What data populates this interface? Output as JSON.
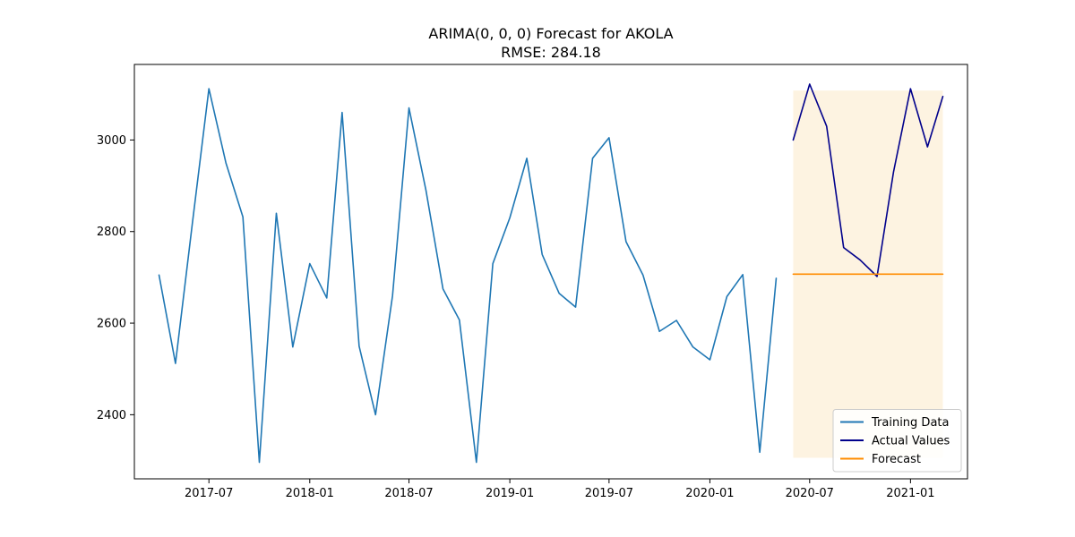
{
  "chart_data": {
    "type": "line",
    "title": "ARIMA(0, 0, 0) Forecast for AKOLA",
    "subtitle": "RMSE: 284.18",
    "xlabel": "",
    "ylabel": "",
    "x_range": [
      "2017-02-15",
      "2021-04-15"
    ],
    "ylim": [
      2260,
      3165
    ],
    "x_ticks": [
      "2017-07",
      "2018-01",
      "2018-07",
      "2019-01",
      "2019-07",
      "2020-01",
      "2020-07",
      "2021-01"
    ],
    "y_ticks": [
      2400,
      2600,
      2800,
      3000
    ],
    "grid": false,
    "legend_position": "lower-right",
    "series": [
      {
        "name": "Training Data",
        "color": "#1f77b4",
        "x": [
          "2017-04",
          "2017-05",
          "2017-06",
          "2017-07",
          "2017-08",
          "2017-09",
          "2017-10",
          "2017-11",
          "2017-12",
          "2018-01",
          "2018-02",
          "2018-03",
          "2018-04",
          "2018-05",
          "2018-06",
          "2018-07",
          "2018-08",
          "2018-09",
          "2018-10",
          "2018-11",
          "2018-12",
          "2019-01",
          "2019-02",
          "2019-03",
          "2019-04",
          "2019-05",
          "2019-06",
          "2019-07",
          "2019-08",
          "2019-09",
          "2019-10",
          "2019-11",
          "2019-12",
          "2020-01",
          "2020-02",
          "2020-03",
          "2020-04",
          "2020-05"
        ],
        "values": [
          2705,
          2512,
          2820,
          3112,
          2950,
          2832,
          2296,
          2840,
          2548,
          2730,
          2655,
          3060,
          2550,
          2400,
          2660,
          3070,
          2890,
          2675,
          2607,
          2296,
          2730,
          2830,
          2960,
          2750,
          2665,
          2635,
          2960,
          3005,
          2778,
          2705,
          2582,
          2606,
          2548,
          2520,
          2658,
          2706,
          2318,
          2698
        ]
      },
      {
        "name": "Actual Values",
        "color": "#00008b",
        "x": [
          "2020-06",
          "2020-07",
          "2020-08",
          "2020-09",
          "2020-10",
          "2020-11",
          "2020-12",
          "2021-01",
          "2021-02",
          "2021-03"
        ],
        "values": [
          3000,
          3122,
          3030,
          2765,
          2738,
          2702,
          2930,
          3112,
          2985,
          3095
        ]
      },
      {
        "name": "Forecast",
        "color": "#ff8c00",
        "x": [
          "2020-06",
          "2020-07",
          "2020-08",
          "2020-09",
          "2020-10",
          "2020-11",
          "2020-12",
          "2021-01",
          "2021-02",
          "2021-03"
        ],
        "values": [
          2707,
          2707,
          2707,
          2707,
          2707,
          2707,
          2707,
          2707,
          2707,
          2707
        ]
      }
    ],
    "confidence_band": {
      "color": "#fdf3e1",
      "x_start": "2020-06",
      "x_end": "2021-03",
      "lower": 2306,
      "upper": 3108
    }
  }
}
